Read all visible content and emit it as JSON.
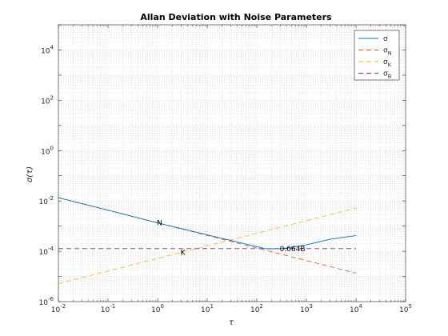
{
  "chart_data": {
    "type": "line",
    "title": "Allan Deviation with Noise Parameters",
    "xlabel": "τ",
    "ylabel": "σ(τ)",
    "xscale": "log",
    "yscale": "log",
    "xlim": [
      0.01,
      100000
    ],
    "ylim": [
      1e-06,
      100000
    ],
    "x_ticks": [
      {
        "b": "10",
        "e": "-2"
      },
      {
        "b": "10",
        "e": "-1"
      },
      {
        "b": "10",
        "e": "0"
      },
      {
        "b": "10",
        "e": "1"
      },
      {
        "b": "10",
        "e": "2"
      },
      {
        "b": "10",
        "e": "3"
      },
      {
        "b": "10",
        "e": "4"
      },
      {
        "b": "10",
        "e": "5"
      }
    ],
    "y_ticks": [
      {
        "b": "10",
        "e": "-6"
      },
      {
        "b": "10",
        "e": "-4"
      },
      {
        "b": "10",
        "e": "-2"
      },
      {
        "b": "10",
        "e": "0"
      },
      {
        "b": "10",
        "e": "2"
      },
      {
        "b": "10",
        "e": "4"
      }
    ],
    "grid": true,
    "legend_position": "top-right",
    "series": [
      {
        "name": "σ",
        "sub": "",
        "color": "#0072BD",
        "dash": "solid",
        "x": [
          0.01,
          0.1,
          1,
          10,
          100,
          150,
          200,
          300,
          400,
          600,
          1000,
          2000,
          3000,
          10000
        ],
        "y": [
          0.0135,
          0.0043,
          0.00135,
          0.00045,
          0.000152,
          0.000127,
          0.000125,
          0.000127,
          0.000135,
          0.000152,
          0.00018,
          0.00025,
          0.0003,
          0.00042
        ]
      },
      {
        "name": "σ",
        "sub": "N",
        "color": "#D95319",
        "dash": "dashed",
        "x": [
          0.01,
          10000
        ],
        "y": [
          0.0135,
          1.35e-05
        ]
      },
      {
        "name": "σ",
        "sub": "K",
        "color": "#EDB120",
        "dash": "dashed",
        "x": [
          0.01,
          10000
        ],
        "y": [
          5.2e-06,
          0.0052
        ]
      },
      {
        "name": "σ",
        "sub": "B",
        "color": "#7E2F8E",
        "dash": "dashed",
        "x": [
          0.01,
          10000
        ],
        "y": [
          0.000127,
          0.000127
        ]
      }
    ],
    "annotations": [
      {
        "text": "N",
        "x": 1,
        "y": 0.00135
      },
      {
        "text": "K",
        "x": 3,
        "y": 9e-05
      },
      {
        "text": "0.664B",
        "x": 300,
        "y": 0.000127
      }
    ]
  }
}
